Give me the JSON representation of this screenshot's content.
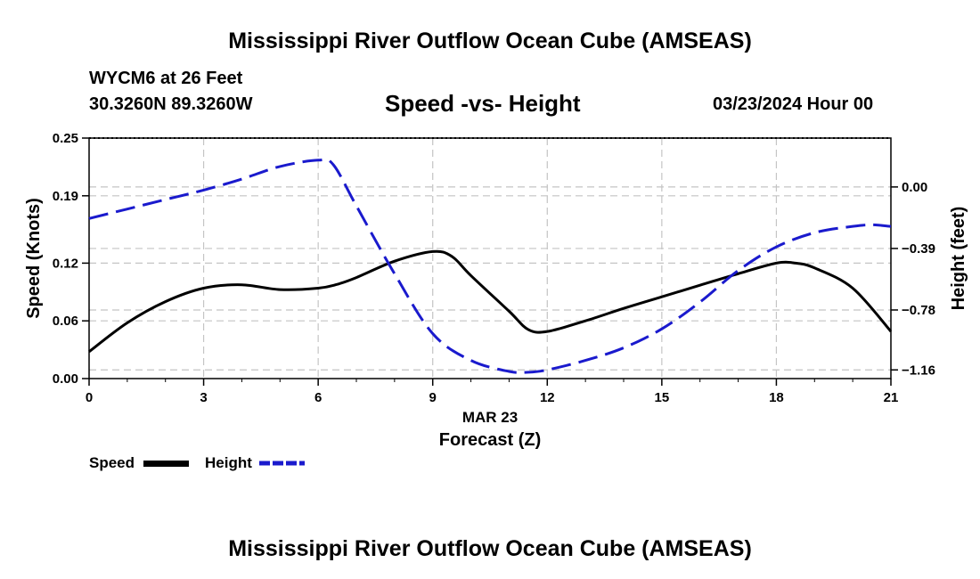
{
  "header": {
    "title": "Mississippi River Outflow Ocean Cube (AMSEAS)",
    "station": "WYCM6 at 26 Feet",
    "coords": "30.3260N  89.3260W",
    "subtitle": "Speed -vs- Height",
    "date": "03/23/2024 Hour 00"
  },
  "footer": {
    "title": "Mississippi River Outflow Ocean Cube (AMSEAS)"
  },
  "chart_data": {
    "type": "line",
    "title": "Speed -vs- Height",
    "xlabel": "Forecast (Z)",
    "xdate_label": "MAR 23",
    "ylabel_left": "Speed (Knots)",
    "ylabel_right": "Height (feet)",
    "xlim": [
      0,
      21
    ],
    "ylim_left": [
      0.0,
      0.25
    ],
    "ylim_right": [
      -1.215,
      0.31
    ],
    "x_ticks": [
      0,
      3,
      6,
      9,
      12,
      15,
      18,
      21
    ],
    "x_tick_labels": [
      "0",
      "3",
      "6",
      "9",
      "12",
      "15",
      "18",
      "21"
    ],
    "y_left_ticks": [
      0.0,
      0.06,
      0.12,
      0.19,
      0.25
    ],
    "y_left_tick_labels": [
      "0.00",
      "0.06",
      "0.12",
      "0.19",
      "0.25"
    ],
    "y_right_ticks": [
      0.0,
      -0.39,
      -0.78,
      -1.16
    ],
    "y_right_tick_labels": [
      "0.00",
      "−0.39",
      "−0.78",
      "−1.16"
    ],
    "grid": true,
    "legend": {
      "position": "bottom-left",
      "entries": [
        "Speed",
        "Height"
      ]
    },
    "series": [
      {
        "name": "Speed",
        "axis": "left",
        "color": "#000000",
        "style": "solid",
        "x": [
          0,
          1,
          2,
          3,
          4,
          5,
          6,
          6.5,
          7,
          8,
          9,
          9.5,
          10,
          11,
          11.5,
          12,
          13,
          14,
          15,
          16,
          17,
          18,
          18.5,
          19,
          20,
          21
        ],
        "values": [
          0.028,
          0.058,
          0.08,
          0.094,
          0.0975,
          0.0925,
          0.094,
          0.098,
          0.105,
          0.122,
          0.132,
          0.127,
          0.107,
          0.07,
          0.051,
          0.049,
          0.06,
          0.073,
          0.085,
          0.097,
          0.109,
          0.12,
          0.12,
          0.115,
          0.094,
          0.049
        ]
      },
      {
        "name": "Height",
        "axis": "right",
        "color": "#1a1acd",
        "style": "dashed",
        "x": [
          0,
          1,
          2,
          3,
          4,
          5,
          6,
          6.4,
          7,
          8,
          9,
          10,
          11,
          11.5,
          12,
          13,
          14,
          15,
          16,
          17,
          18,
          19,
          20,
          20.5,
          21
        ],
        "values": [
          -0.2,
          -0.14,
          -0.08,
          -0.02,
          0.05,
          0.13,
          0.17,
          0.14,
          -0.12,
          -0.55,
          -0.93,
          -1.1,
          -1.17,
          -1.175,
          -1.16,
          -1.1,
          -1.02,
          -0.9,
          -0.73,
          -0.53,
          -0.38,
          -0.29,
          -0.25,
          -0.24,
          -0.25
        ]
      }
    ]
  }
}
